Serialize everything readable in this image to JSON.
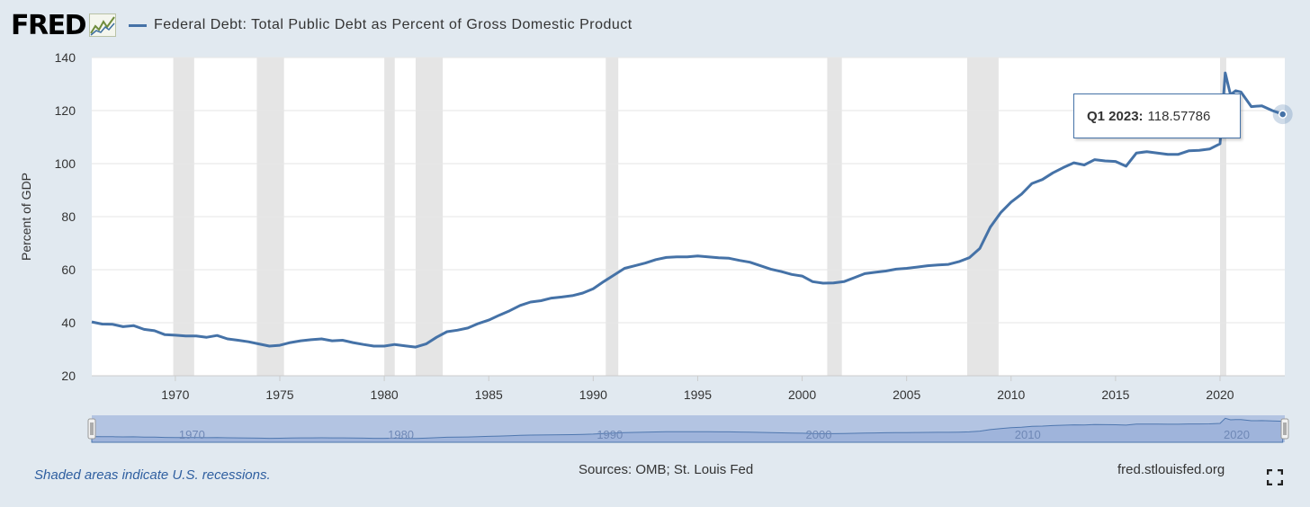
{
  "header": {
    "logo_text": "FRED",
    "series_title": "Federal Debt: Total Public Debt as Percent of Gross Domestic Product"
  },
  "tooltip": {
    "label": "Q1 2023:",
    "value": "118.57786"
  },
  "footer": {
    "recession_note": "Shaded areas indicate U.S. recessions.",
    "sources": "Sources: OMB; St. Louis Fed",
    "site": "fred.stlouisfed.org"
  },
  "colors": {
    "line": "#4572a7",
    "background": "#e1e9f0",
    "recession": "#e5e5e5",
    "navigator": "#b8c9e6"
  },
  "chart_data": {
    "type": "line",
    "title": "Federal Debt: Total Public Debt as Percent of Gross Domestic Product",
    "ylabel": "Percent of GDP",
    "xlabel": "",
    "ylim": [
      20,
      140
    ],
    "xlim": [
      1966.0,
      2023.1
    ],
    "yticks": [
      20,
      40,
      60,
      80,
      100,
      120,
      140
    ],
    "xticks": [
      1970,
      1975,
      1980,
      1985,
      1990,
      1995,
      2000,
      2005,
      2010,
      2015,
      2020
    ],
    "navigator_ticks": [
      1970,
      1980,
      1990,
      2000,
      2010,
      2020
    ],
    "recessions": [
      [
        1969.9,
        1970.9
      ],
      [
        1973.9,
        1975.2
      ],
      [
        1980.0,
        1980.5
      ],
      [
        1981.5,
        1982.8
      ],
      [
        1990.6,
        1991.2
      ],
      [
        2001.2,
        2001.9
      ],
      [
        2007.9,
        2009.4
      ],
      [
        2020.0,
        2020.3
      ]
    ],
    "series": [
      {
        "name": "Federal Debt: Total Public Debt as Percent of Gross Domestic Product",
        "x": [
          1966.0,
          1966.5,
          1967.0,
          1967.5,
          1968.0,
          1968.5,
          1969.0,
          1969.5,
          1970.0,
          1970.5,
          1971.0,
          1971.5,
          1972.0,
          1972.5,
          1973.0,
          1973.5,
          1974.0,
          1974.5,
          1975.0,
          1975.5,
          1976.0,
          1976.5,
          1977.0,
          1977.5,
          1978.0,
          1978.5,
          1979.0,
          1979.5,
          1980.0,
          1980.5,
          1981.0,
          1981.5,
          1982.0,
          1982.5,
          1983.0,
          1983.5,
          1984.0,
          1984.5,
          1985.0,
          1985.5,
          1986.0,
          1986.5,
          1987.0,
          1987.5,
          1988.0,
          1988.5,
          1989.0,
          1989.5,
          1990.0,
          1990.5,
          1991.0,
          1991.5,
          1992.0,
          1992.5,
          1993.0,
          1993.5,
          1994.0,
          1994.5,
          1995.0,
          1995.5,
          1996.0,
          1996.5,
          1997.0,
          1997.5,
          1998.0,
          1998.5,
          1999.0,
          1999.5,
          2000.0,
          2000.5,
          2001.0,
          2001.5,
          2002.0,
          2002.5,
          2003.0,
          2003.5,
          2004.0,
          2004.5,
          2005.0,
          2005.5,
          2006.0,
          2006.5,
          2007.0,
          2007.5,
          2008.0,
          2008.5,
          2009.0,
          2009.5,
          2010.0,
          2010.5,
          2011.0,
          2011.5,
          2012.0,
          2012.5,
          2013.0,
          2013.5,
          2014.0,
          2014.5,
          2015.0,
          2015.5,
          2016.0,
          2016.5,
          2017.0,
          2017.5,
          2018.0,
          2018.5,
          2019.0,
          2019.5,
          2020.0,
          2020.25,
          2020.5,
          2020.75,
          2021.0,
          2021.5,
          2022.0,
          2022.5,
          2023.0
        ],
        "values": [
          40.3,
          39.5,
          39.4,
          38.5,
          38.9,
          37.5,
          37.0,
          35.5,
          35.3,
          35.0,
          35.0,
          34.5,
          35.2,
          33.9,
          33.4,
          32.8,
          32.0,
          31.2,
          31.5,
          32.5,
          33.2,
          33.6,
          33.9,
          33.2,
          33.4,
          32.5,
          31.8,
          31.2,
          31.2,
          31.8,
          31.3,
          30.8,
          32.0,
          34.5,
          36.6,
          37.2,
          38.0,
          39.7,
          41.0,
          42.8,
          44.5,
          46.5,
          47.8,
          48.3,
          49.3,
          49.7,
          50.2,
          51.2,
          52.8,
          55.5,
          58.0,
          60.5,
          61.5,
          62.5,
          63.8,
          64.6,
          64.8,
          64.8,
          65.2,
          64.8,
          64.5,
          64.3,
          63.5,
          62.8,
          61.5,
          60.2,
          59.3,
          58.2,
          57.6,
          55.5,
          54.9,
          55.0,
          55.5,
          57.0,
          58.5,
          59.0,
          59.5,
          60.2,
          60.5,
          61.0,
          61.5,
          61.8,
          62.0,
          63.0,
          64.5,
          68.0,
          76.0,
          81.5,
          85.5,
          88.5,
          92.5,
          94.0,
          96.5,
          98.5,
          100.3,
          99.5,
          101.5,
          101.0,
          100.8,
          99.0,
          104.0,
          104.5,
          104.0,
          103.5,
          103.5,
          104.8,
          105.0,
          105.5,
          107.5,
          134.2,
          126.0,
          127.5,
          127.0,
          121.5,
          121.8,
          120.0,
          118.6
        ]
      }
    ]
  }
}
